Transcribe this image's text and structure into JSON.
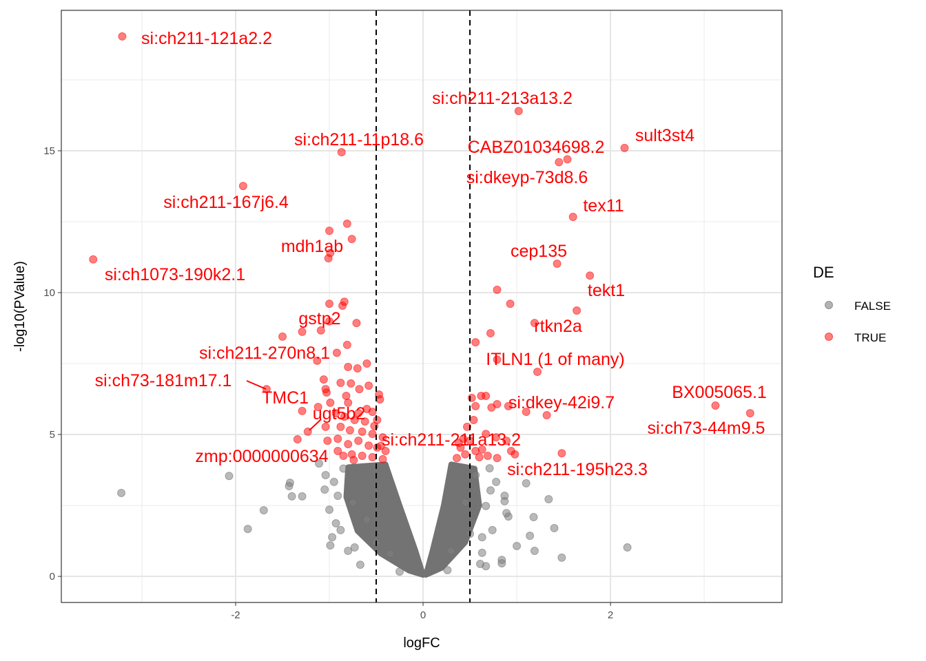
{
  "chart_data": {
    "type": "scatter",
    "title": "",
    "xlabel": "logFC",
    "ylabel": "-log10(PValue)",
    "xlim": [
      -3.86,
      3.83
    ],
    "ylim": [
      -0.92,
      19.95
    ],
    "x_ticks": [
      -2,
      0,
      2
    ],
    "y_ticks": [
      0,
      5,
      10,
      15
    ],
    "x_tick_labels": [
      "-2",
      "0",
      "2"
    ],
    "y_tick_labels": [
      "0",
      "5",
      "10",
      "15"
    ],
    "grid": true,
    "threshold_lines": {
      "x": [
        -0.5,
        0.5
      ],
      "style": "dashed",
      "color": "#000000"
    },
    "legend": {
      "title": "DE",
      "position": "right",
      "entries": [
        {
          "label": "FALSE",
          "color": "#808080"
        },
        {
          "label": "TRUE",
          "color": "#ff0000"
        }
      ]
    },
    "colors": {
      "FALSE": "#808080",
      "TRUE": "#ff0000"
    },
    "labeled_points": [
      {
        "gene": "si:ch211-121a2.2",
        "x": -3.21,
        "y": 19.03
      },
      {
        "gene": "si:ch211-213a13.2",
        "x": 1.02,
        "y": 16.4
      },
      {
        "gene": "si:ch211-11p18.6",
        "x": -0.87,
        "y": 14.95
      },
      {
        "gene": "sult3st4",
        "x": 2.15,
        "y": 15.1
      },
      {
        "gene": "CABZ01034698.2",
        "x": 1.54,
        "y": 14.7
      },
      {
        "gene": "si:dkeyp-73d8.6",
        "x": 1.45,
        "y": 14.6
      },
      {
        "gene": "si:ch211-167j6.4",
        "x": -1.92,
        "y": 13.76
      },
      {
        "gene": "tex11",
        "x": 1.6,
        "y": 12.67
      },
      {
        "gene": "mdh1ab",
        "x": -0.99,
        "y": 11.4
      },
      {
        "gene": "si:ch1073-190k2.1",
        "x": -3.52,
        "y": 11.17
      },
      {
        "gene": "cep135",
        "x": 1.43,
        "y": 11.02
      },
      {
        "gene": "tekt1",
        "x": 1.78,
        "y": 10.6
      },
      {
        "gene": "gstp2",
        "x": -1.0,
        "y": 8.99
      },
      {
        "gene": "rtkn2a",
        "x": 1.19,
        "y": 8.93
      },
      {
        "gene": "si:ch211-270n8.1",
        "x": -0.92,
        "y": 7.88
      },
      {
        "gene": "ITLN1 (1 of many)",
        "x": 0.79,
        "y": 7.64
      },
      {
        "gene": "si:ch73-181m17.1",
        "x": -1.67,
        "y": 6.6
      },
      {
        "gene": "TMC1",
        "x": -1.29,
        "y": 5.83
      },
      {
        "gene": "ugt5b2",
        "x": -1.23,
        "y": 5.1
      },
      {
        "gene": "si:ch211-211a13.2",
        "x": 0.43,
        "y": 4.85
      },
      {
        "gene": "zmp:0000000634",
        "x": -1.34,
        "y": 4.83
      },
      {
        "gene": "BX005065.1",
        "x": 3.12,
        "y": 6.02
      },
      {
        "gene": "si:dkey-42i9.7",
        "x": 1.1,
        "y": 5.8
      },
      {
        "gene": "si:ch73-44m9.5",
        "x": 3.49,
        "y": 5.75
      },
      {
        "gene": "si:ch211-195h23.3",
        "x": 1.48,
        "y": 4.34
      }
    ],
    "series": [
      {
        "name": "TRUE",
        "points": [
          [
            -0.81,
            12.43
          ],
          [
            -1.0,
            12.18
          ],
          [
            -0.76,
            11.89
          ],
          [
            -1.01,
            11.21
          ],
          [
            0.79,
            10.1
          ],
          [
            0.93,
            9.61
          ],
          [
            -1.0,
            9.61
          ],
          [
            -0.84,
            9.68
          ],
          [
            -0.86,
            9.54
          ],
          [
            1.64,
            9.37
          ],
          [
            -0.71,
            8.93
          ],
          [
            -1.09,
            8.67
          ],
          [
            -1.29,
            8.62
          ],
          [
            -1.5,
            8.45
          ],
          [
            0.72,
            8.57
          ],
          [
            0.56,
            8.25
          ],
          [
            -0.81,
            8.16
          ],
          [
            -1.13,
            7.6
          ],
          [
            -0.6,
            7.5
          ],
          [
            -0.8,
            7.38
          ],
          [
            -0.7,
            7.33
          ],
          [
            1.22,
            7.21
          ],
          [
            -1.06,
            6.94
          ],
          [
            -0.88,
            6.82
          ],
          [
            -0.77,
            6.8
          ],
          [
            -0.58,
            6.72
          ],
          [
            -1.04,
            6.6
          ],
          [
            -0.68,
            6.6
          ],
          [
            -1.03,
            6.48
          ],
          [
            -0.47,
            6.41
          ],
          [
            -0.46,
            6.24
          ],
          [
            -0.82,
            6.36
          ],
          [
            -0.99,
            6.12
          ],
          [
            -0.8,
            6.12
          ],
          [
            0.52,
            6.29
          ],
          [
            0.62,
            6.36
          ],
          [
            0.67,
            6.36
          ],
          [
            0.56,
            6.0
          ],
          [
            0.91,
            6.0
          ],
          [
            0.79,
            6.07
          ],
          [
            0.73,
            5.95
          ],
          [
            1.32,
            5.68
          ],
          [
            -1.12,
            5.97
          ],
          [
            -0.69,
            5.75
          ],
          [
            -0.54,
            5.8
          ],
          [
            -0.93,
            5.75
          ],
          [
            -0.84,
            5.63
          ],
          [
            -0.73,
            5.51
          ],
          [
            -0.62,
            5.46
          ],
          [
            -0.49,
            5.51
          ],
          [
            -1.04,
            5.27
          ],
          [
            -0.88,
            5.27
          ],
          [
            -0.78,
            5.15
          ],
          [
            -0.65,
            5.1
          ],
          [
            -0.54,
            5.02
          ],
          [
            -0.43,
            4.9
          ],
          [
            -1.02,
            4.78
          ],
          [
            -0.91,
            4.85
          ],
          [
            -0.8,
            4.66
          ],
          [
            -0.69,
            4.78
          ],
          [
            -0.58,
            4.61
          ],
          [
            -0.49,
            4.54
          ],
          [
            -0.4,
            4.42
          ],
          [
            -0.91,
            4.42
          ],
          [
            -0.76,
            4.3
          ],
          [
            -0.65,
            4.25
          ],
          [
            -0.54,
            4.2
          ],
          [
            -0.43,
            4.13
          ],
          [
            -0.74,
            4.1
          ],
          [
            -0.85,
            4.25
          ],
          [
            0.47,
            5.27
          ],
          [
            0.54,
            5.51
          ],
          [
            0.5,
            4.78
          ],
          [
            0.4,
            4.54
          ],
          [
            0.45,
            4.3
          ],
          [
            0.56,
            4.42
          ],
          [
            0.67,
            5.02
          ],
          [
            0.78,
            4.9
          ],
          [
            0.89,
            4.78
          ],
          [
            0.94,
            4.42
          ],
          [
            0.98,
            4.3
          ],
          [
            0.79,
            4.17
          ],
          [
            0.69,
            4.25
          ],
          [
            0.6,
            4.2
          ],
          [
            0.36,
            4.17
          ],
          [
            0.63,
            4.47
          ],
          [
            -0.6,
            5.9
          ],
          [
            -0.52,
            5.3
          ],
          [
            -0.45,
            4.6
          ],
          [
            0.38,
            4.7
          ]
        ]
      },
      {
        "name": "FALSE",
        "points": [
          [
            -3.22,
            2.94
          ],
          [
            -2.07,
            3.54
          ],
          [
            -1.7,
            2.33
          ],
          [
            -1.87,
            1.67
          ],
          [
            -1.42,
            3.3
          ],
          [
            -1.43,
            3.18
          ],
          [
            -1.4,
            2.82
          ],
          [
            -1.29,
            2.82
          ],
          [
            -1.11,
            3.98
          ],
          [
            -1.05,
            3.06
          ],
          [
            -1.04,
            3.57
          ],
          [
            -0.95,
            3.33
          ],
          [
            -0.91,
            2.84
          ],
          [
            -1.0,
            2.35
          ],
          [
            -0.93,
            1.87
          ],
          [
            -0.97,
            1.38
          ],
          [
            -0.99,
            1.09
          ],
          [
            -0.88,
            1.63
          ],
          [
            -0.8,
            0.9
          ],
          [
            -0.67,
            0.41
          ],
          [
            -0.73,
            1.02
          ],
          [
            2.18,
            1.02
          ],
          [
            1.48,
            0.66
          ],
          [
            1.19,
            0.9
          ],
          [
            1.14,
            1.43
          ],
          [
            1.18,
            2.09
          ],
          [
            1.4,
            1.7
          ],
          [
            1.34,
            2.72
          ],
          [
            1.1,
            3.28
          ],
          [
            1.0,
            1.07
          ],
          [
            0.84,
            0.58
          ],
          [
            0.84,
            0.46
          ],
          [
            0.67,
            0.36
          ],
          [
            0.61,
            0.44
          ],
          [
            0.63,
            0.83
          ],
          [
            0.91,
            2.11
          ],
          [
            0.89,
            2.23
          ],
          [
            0.87,
            2.84
          ],
          [
            0.87,
            2.65
          ],
          [
            0.78,
            3.33
          ],
          [
            0.72,
            3.03
          ],
          [
            0.67,
            2.48
          ],
          [
            0.74,
            1.63
          ],
          [
            0.63,
            1.38
          ],
          [
            0.71,
            3.81
          ],
          [
            0.56,
            3.57
          ],
          [
            -0.25,
            0.17
          ],
          [
            0.26,
            0.22
          ],
          [
            -0.85,
            3.8
          ],
          [
            -0.6,
            2.0
          ],
          [
            -0.5,
            1.2
          ],
          [
            0.5,
            1.5
          ],
          [
            0.45,
            2.6
          ],
          [
            -0.75,
            2.6
          ],
          [
            0.3,
            0.9
          ],
          [
            -0.35,
            0.8
          ]
        ]
      }
    ]
  }
}
